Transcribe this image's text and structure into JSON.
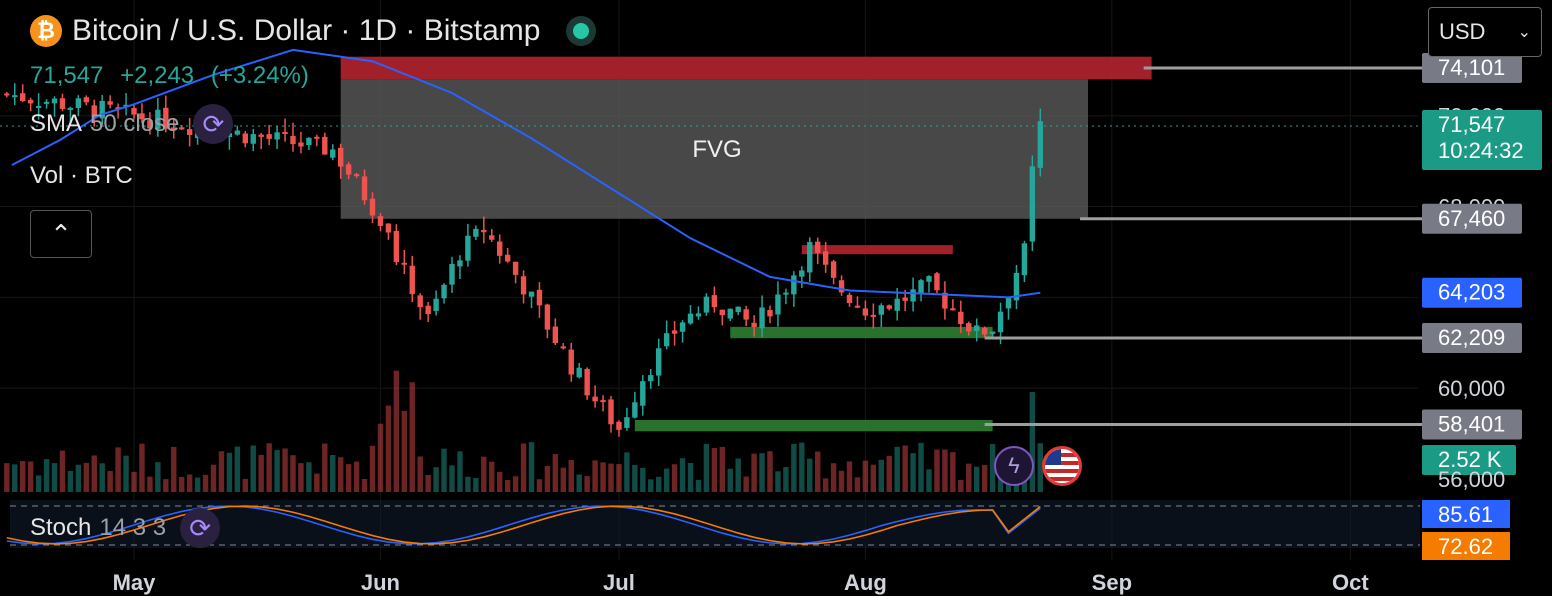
{
  "header": {
    "title": "Bitcoin / U.S. Dollar · 1D · Bitstamp",
    "btc_symbol": "₿",
    "last": "71,547",
    "change": "+2,243",
    "change_pct": "(+3.24%)"
  },
  "indicators": {
    "sma_label": "SMA",
    "sma_params": "50 close",
    "vol_label": "Vol · BTC",
    "stoch_label": "Stoch",
    "stoch_params": "14 3 3"
  },
  "currency": {
    "value": "USD",
    "caret": "⌄"
  },
  "collapse_icon": "⌃",
  "icons": {
    "refresh": "⟳",
    "flash": "ϟ"
  },
  "colors": {
    "up": "#26a69a",
    "down": "#ef5350",
    "sma": "#2962ff",
    "fvg": "#5a5a5a",
    "resistance": "#b2232f",
    "support": "#2e7d32"
  },
  "chart_data": {
    "type": "candlestick",
    "symbol": "Bitcoin / U.S. Dollar",
    "interval": "1D",
    "exchange": "Bitstamp",
    "x_labels": [
      {
        "label": "May",
        "day": 0
      },
      {
        "label": "Jun",
        "day": 31
      },
      {
        "label": "Jul",
        "day": 61
      },
      {
        "label": "Aug",
        "day": 92
      },
      {
        "label": "Sep",
        "day": 123
      },
      {
        "label": "Oct",
        "day": 153
      }
    ],
    "ylim": [
      55500,
      75500
    ],
    "y_tick_labels": [
      "74,101",
      "72,000",
      "71,547",
      "68,000",
      "67,460",
      "64,203",
      "62,209",
      "60,000",
      "58,401",
      "56,000"
    ],
    "candles_close_trend": [
      {
        "day": 25,
        "price": 70500
      },
      {
        "day": 31,
        "price": 67500
      },
      {
        "day": 33,
        "price": 65800
      },
      {
        "day": 37,
        "price": 63000
      },
      {
        "day": 41,
        "price": 66000
      },
      {
        "day": 44,
        "price": 67000
      },
      {
        "day": 49,
        "price": 64500
      },
      {
        "day": 55,
        "price": 61000
      },
      {
        "day": 58,
        "price": 59500
      },
      {
        "day": 61,
        "price": 58200
      },
      {
        "day": 64,
        "price": 60500
      },
      {
        "day": 69,
        "price": 63000
      },
      {
        "day": 73,
        "price": 63800
      },
      {
        "day": 78,
        "price": 62700
      },
      {
        "day": 82,
        "price": 64500
      },
      {
        "day": 85,
        "price": 66200
      },
      {
        "day": 88,
        "price": 64600
      },
      {
        "day": 92,
        "price": 63500
      },
      {
        "day": 96,
        "price": 63800
      },
      {
        "day": 100,
        "price": 64500
      },
      {
        "day": 103,
        "price": 63500
      },
      {
        "day": 106,
        "price": 62400
      },
      {
        "day": 108,
        "price": 62700
      },
      {
        "day": 110,
        "price": 64300
      },
      {
        "day": 112,
        "price": 66000
      },
      {
        "day": 113,
        "price": 69500
      },
      {
        "day": 114,
        "price": 71547
      }
    ],
    "sma50": [
      {
        "day": 0,
        "price": 72500
      },
      {
        "day": 10,
        "price": 73800
      },
      {
        "day": 20,
        "price": 74900
      },
      {
        "day": 30,
        "price": 74400
      },
      {
        "day": 40,
        "price": 73000
      },
      {
        "day": 50,
        "price": 71000
      },
      {
        "day": 60,
        "price": 68800
      },
      {
        "day": 70,
        "price": 66600
      },
      {
        "day": 80,
        "price": 64900
      },
      {
        "day": 90,
        "price": 64300
      },
      {
        "day": 100,
        "price": 64150
      },
      {
        "day": 110,
        "price": 64000
      },
      {
        "day": 114,
        "price": 64203
      }
    ],
    "zones": [
      {
        "name": "FVG",
        "from_day": 26,
        "to_day": 120,
        "low": 67460,
        "high": 73600,
        "color": "fvg"
      },
      {
        "name": "",
        "from_day": 26,
        "to_day": 128,
        "low": 73600,
        "high": 74600,
        "color": "resistance"
      },
      {
        "name": "",
        "from_day": 84,
        "to_day": 103,
        "low": 65900,
        "high": 66300,
        "color": "resistance"
      },
      {
        "name": "",
        "from_day": 75,
        "to_day": 108,
        "low": 62200,
        "high": 62700,
        "color": "support"
      },
      {
        "name": "",
        "from_day": 63,
        "to_day": 108,
        "low": 58100,
        "high": 58600,
        "color": "support"
      }
    ],
    "horizontal_levels": [
      {
        "label": "74,101",
        "price": 74101,
        "from_day": 127
      },
      {
        "label": "67,460",
        "price": 67460,
        "from_day": 119
      },
      {
        "label": "62,209",
        "price": 62209,
        "from_day": 107
      },
      {
        "label": "58,401",
        "price": 58401,
        "from_day": 107
      }
    ],
    "price_labels": [
      {
        "text": "74,101",
        "price": 74101,
        "bg": "#787b86"
      },
      {
        "text": "72,000",
        "price": 72000,
        "bg": ""
      },
      {
        "text": "71,547",
        "sub": "10:24:32",
        "price": 71547,
        "bg": "#1b9a86"
      },
      {
        "text": "68,000",
        "price": 68000,
        "bg": ""
      },
      {
        "text": "67,460",
        "price": 67460,
        "bg": "#787b86"
      },
      {
        "text": "64,203",
        "price": 64203,
        "bg": "#2962ff"
      },
      {
        "text": "62,209",
        "price": 62209,
        "bg": "#787b86"
      },
      {
        "text": "60,000",
        "price": 60000,
        "bg": ""
      },
      {
        "text": "58,401",
        "price": 58401,
        "bg": "#787b86"
      },
      {
        "text": "2.52 K",
        "price": 57100,
        "bg": "#1b9a86"
      },
      {
        "text": "56,000",
        "price": 56000,
        "bg": ""
      }
    ],
    "stoch": {
      "k": 85.61,
      "d": 72.62,
      "k_color": "#2962ff",
      "d_color": "#f57c00"
    }
  }
}
